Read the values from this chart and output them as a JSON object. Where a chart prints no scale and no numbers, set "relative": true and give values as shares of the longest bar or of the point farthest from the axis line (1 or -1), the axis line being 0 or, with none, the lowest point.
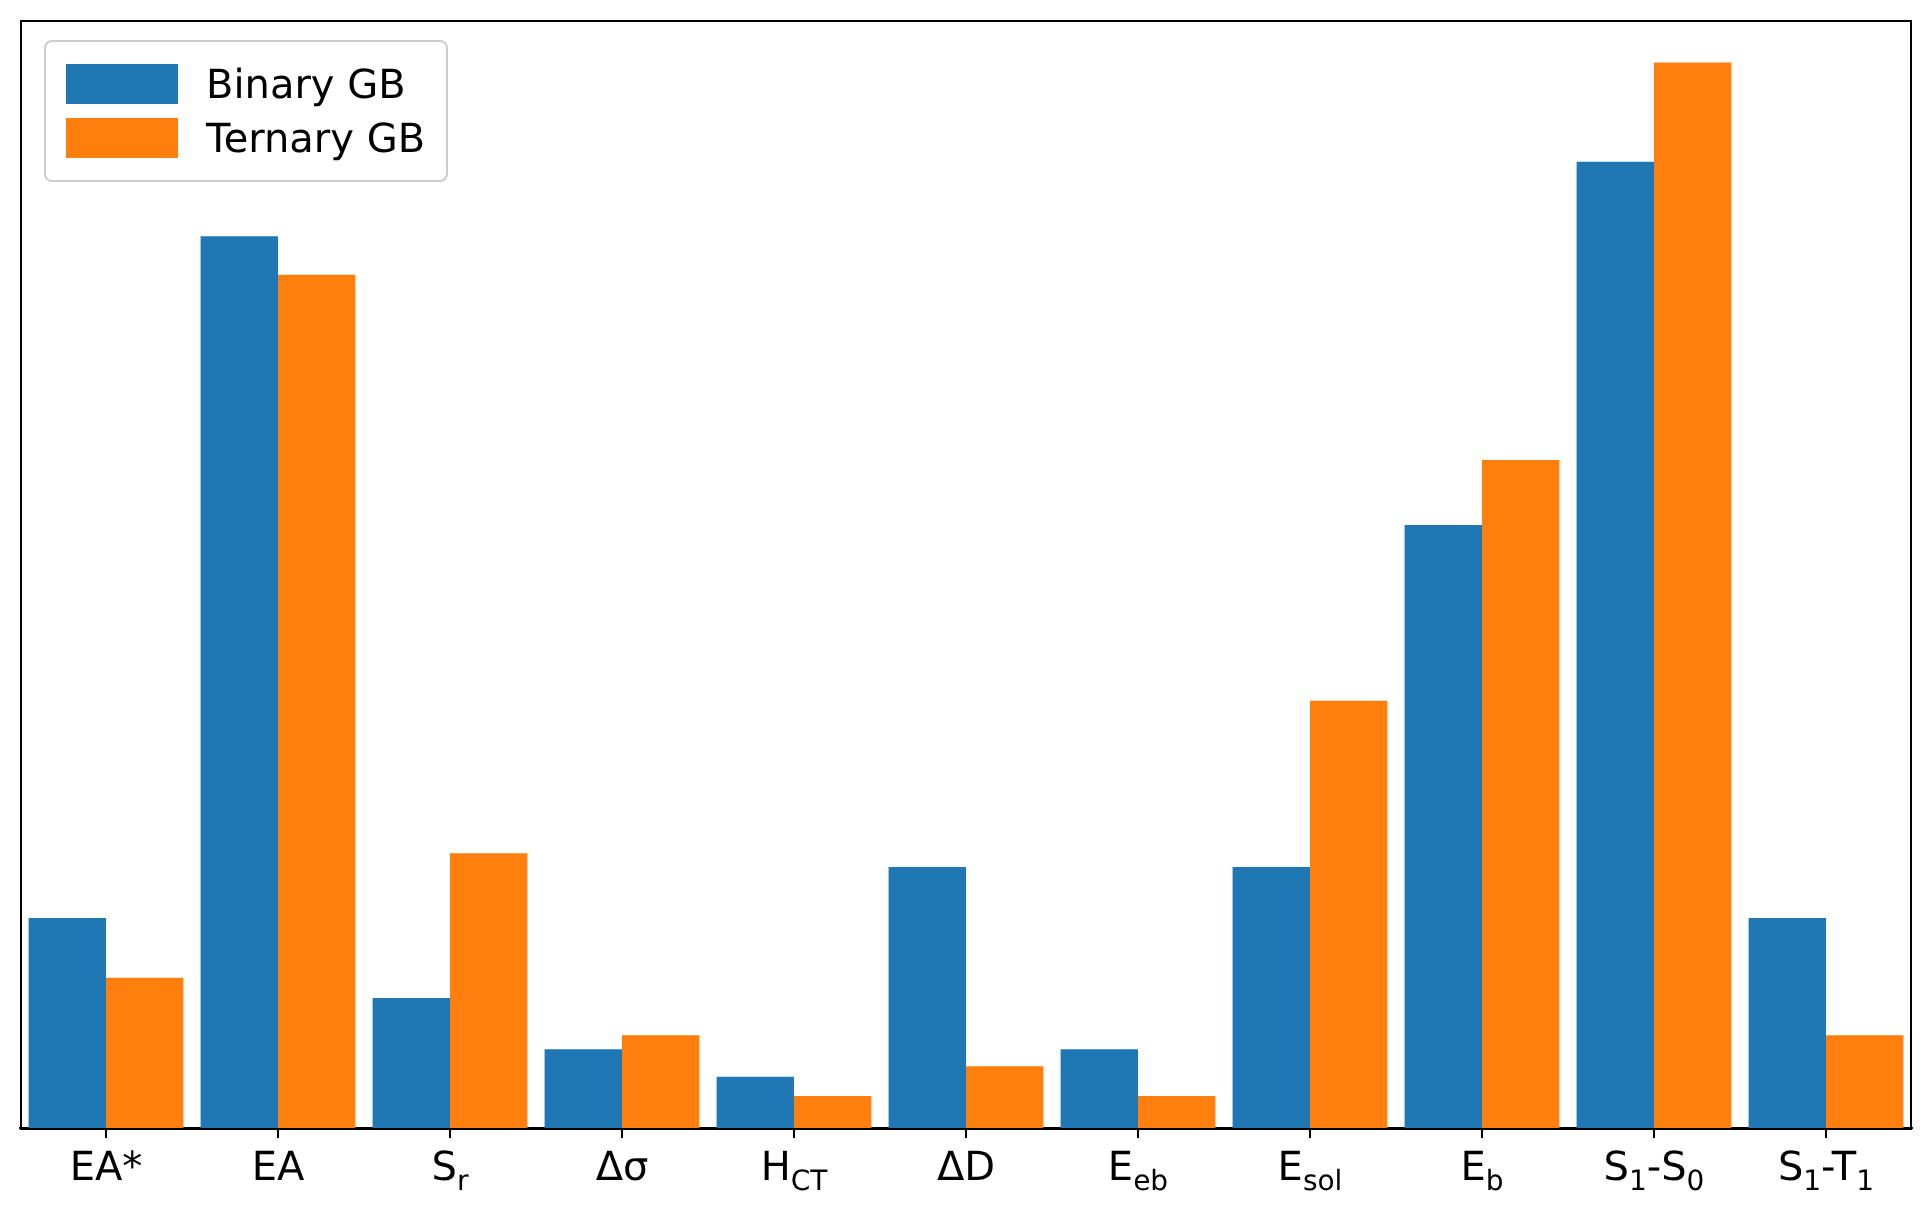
{
  "chart_data": {
    "type": "bar",
    "relative": true,
    "legend": "top left",
    "categories": [
      "EA*",
      "EA",
      "S$_{r}$",
      "Δσ",
      "H$_{CT}$",
      "ΔD",
      "E$_{eb}$",
      "E$_{sol}$",
      "E$_{b}$",
      "S$_{1}$-S$_{0}$",
      "S$_{1}$-T$_{1}$"
    ],
    "series": [
      {
        "name": "Binary GB",
        "color": "#1f77b4",
        "values": [
          0.197,
          0.837,
          0.122,
          0.074,
          0.048,
          0.245,
          0.074,
          0.245,
          0.566,
          0.907,
          0.197
        ]
      },
      {
        "name": "Ternary GB",
        "color": "#ff7f0e",
        "values": [
          0.141,
          0.801,
          0.258,
          0.087,
          0.03,
          0.058,
          0.03,
          0.401,
          0.627,
          1,
          0.087
        ]
      }
    ]
  }
}
